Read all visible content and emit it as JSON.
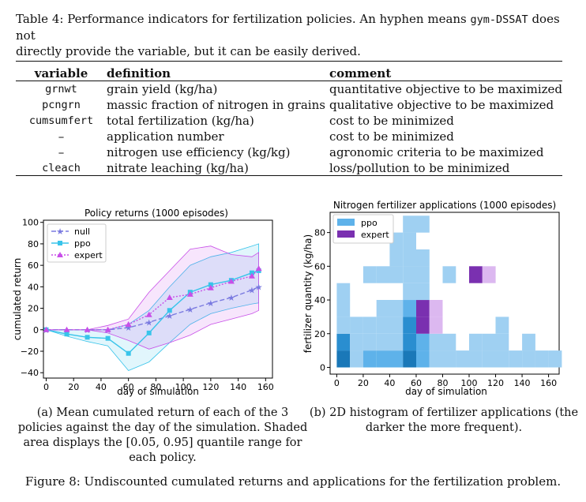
{
  "table_caption": {
    "prefix": "Table 4: Performance indicators for fertilization policies. An hyphen means ",
    "code": "gym-DSSAT",
    "line1_suffix": " does not",
    "line2": "directly provide the variable, but it can be easily derived."
  },
  "table": {
    "headers": [
      "variable",
      "definition",
      "comment"
    ],
    "rows": [
      {
        "variable": "grnwt",
        "definition": "grain yield (kg/ha)",
        "comment": "quantitative objective to be maximized"
      },
      {
        "variable": "pcngrn",
        "definition": "massic fraction of nitrogen in grains",
        "comment": "qualitative objective to be maximized"
      },
      {
        "variable": "cumsumfert",
        "definition": "total fertilization (kg/ha)",
        "comment": "cost to be minimized"
      },
      {
        "variable": "–",
        "definition": "application number",
        "comment": "cost to be minimized"
      },
      {
        "variable": "–",
        "definition": "nitrogen use efficiency (kg/kg)",
        "comment": "agronomic criteria to be maximized"
      },
      {
        "variable": "cleach",
        "definition": "nitrate leaching (kg/ha)",
        "comment": "loss/pollution to be minimized"
      }
    ]
  },
  "colors": {
    "null": "#7a7ae0",
    "ppo": "#38c4ea",
    "expert": "#c84fe8",
    "hist_ppo_light": "#9fd0f2",
    "hist_ppo_mid": "#5eb2ea",
    "hist_ppo_dark": "#2a8ed0",
    "hist_ppo_darker": "#1a78b8",
    "hist_expert_dark": "#7a30b0",
    "hist_expert_light": "#dcb8f0"
  },
  "chart_data": [
    {
      "type": "line",
      "title": "Policy returns (1000 episodes)",
      "xlabel": "day of simulation",
      "ylabel": "cumulated return",
      "xlim": [
        -2,
        165
      ],
      "ylim": [
        -45,
        102
      ],
      "xticks": [
        0,
        20,
        40,
        60,
        80,
        100,
        120,
        140,
        160
      ],
      "yticks": [
        -40,
        -20,
        0,
        20,
        40,
        60,
        80,
        100
      ],
      "legend_position": "top-left",
      "series": [
        {
          "name": "null",
          "color_key": "null",
          "marker": "star",
          "dash": "6,3",
          "x": [
            0,
            15,
            30,
            45,
            60,
            75,
            90,
            105,
            120,
            135,
            150,
            155
          ],
          "y": [
            0,
            0,
            0,
            0,
            2,
            7,
            13,
            19,
            25,
            30,
            37,
            40
          ],
          "band_lo": [
            0,
            0,
            0,
            0,
            0,
            0,
            0,
            0,
            0,
            0,
            0,
            0
          ],
          "band_hi": [
            0,
            0,
            0,
            0,
            0,
            0,
            0,
            0,
            0,
            0,
            0,
            0
          ]
        },
        {
          "name": "ppo",
          "color_key": "ppo",
          "marker": "circle",
          "dash": "",
          "x": [
            0,
            15,
            30,
            45,
            60,
            75,
            90,
            105,
            120,
            135,
            150,
            155
          ],
          "y": [
            0,
            -4,
            -7,
            -8,
            -22,
            -3,
            18,
            35,
            42,
            46,
            53,
            55
          ],
          "band_lo": [
            0,
            -6,
            -11,
            -15,
            -38,
            -30,
            -12,
            5,
            15,
            20,
            24,
            25
          ],
          "band_hi": [
            0,
            0,
            0,
            0,
            5,
            18,
            40,
            60,
            68,
            72,
            78,
            80
          ]
        },
        {
          "name": "expert",
          "color_key": "expert",
          "marker": "triangle",
          "dash": "2,2",
          "x": [
            0,
            15,
            30,
            45,
            60,
            75,
            90,
            105,
            120,
            135,
            150,
            155
          ],
          "y": [
            0,
            0,
            0,
            0,
            5,
            14,
            30,
            33,
            39,
            45,
            50,
            57
          ],
          "band_lo": [
            0,
            0,
            0,
            -3,
            -10,
            -18,
            -12,
            -5,
            5,
            10,
            15,
            18
          ],
          "band_hi": [
            0,
            0,
            0,
            4,
            10,
            35,
            55,
            75,
            78,
            70,
            68,
            72
          ]
        }
      ]
    },
    {
      "type": "heatmap",
      "title": "Nitrogen fertilizer applications (1000 episodes)",
      "xlabel": "day of simulation",
      "ylabel": "fertilizer quantity (kg/ha)",
      "xlim": [
        -5,
        168
      ],
      "ylim": [
        -4,
        92
      ],
      "xticks": [
        0,
        20,
        40,
        60,
        80,
        100,
        120,
        140,
        160
      ],
      "yticks": [
        0,
        20,
        40,
        60,
        80
      ],
      "legend_position": "top-left",
      "legend": [
        {
          "name": "ppo",
          "color_key": "hist_ppo_mid"
        },
        {
          "name": "expert",
          "color_key": "hist_expert_dark"
        }
      ],
      "bin_width": 10,
      "bin_height": 10,
      "cells": [
        {
          "x": 0,
          "y": 0,
          "level": "darker",
          "policy": "ppo"
        },
        {
          "x": 0,
          "y": 10,
          "level": "dark",
          "policy": "ppo"
        },
        {
          "x": 0,
          "y": 20,
          "level": "light",
          "policy": "ppo"
        },
        {
          "x": 0,
          "y": 30,
          "level": "light",
          "policy": "ppo"
        },
        {
          "x": 0,
          "y": 40,
          "level": "light",
          "policy": "ppo"
        },
        {
          "x": 10,
          "y": 0,
          "level": "light",
          "policy": "ppo"
        },
        {
          "x": 10,
          "y": 10,
          "level": "light",
          "policy": "ppo"
        },
        {
          "x": 10,
          "y": 20,
          "level": "light",
          "policy": "ppo"
        },
        {
          "x": 20,
          "y": 0,
          "level": "mid",
          "policy": "ppo"
        },
        {
          "x": 20,
          "y": 10,
          "level": "light",
          "policy": "ppo"
        },
        {
          "x": 20,
          "y": 20,
          "level": "light",
          "policy": "ppo"
        },
        {
          "x": 20,
          "y": 50,
          "level": "light",
          "policy": "ppo"
        },
        {
          "x": 30,
          "y": 0,
          "level": "mid",
          "policy": "ppo"
        },
        {
          "x": 30,
          "y": 10,
          "level": "light",
          "policy": "ppo"
        },
        {
          "x": 30,
          "y": 20,
          "level": "light",
          "policy": "ppo"
        },
        {
          "x": 30,
          "y": 30,
          "level": "light",
          "policy": "ppo"
        },
        {
          "x": 30,
          "y": 50,
          "level": "light",
          "policy": "ppo"
        },
        {
          "x": 40,
          "y": 0,
          "level": "mid",
          "policy": "ppo"
        },
        {
          "x": 40,
          "y": 10,
          "level": "light",
          "policy": "ppo"
        },
        {
          "x": 40,
          "y": 20,
          "level": "light",
          "policy": "ppo"
        },
        {
          "x": 40,
          "y": 30,
          "level": "light",
          "policy": "ppo"
        },
        {
          "x": 40,
          "y": 50,
          "level": "light",
          "policy": "ppo"
        },
        {
          "x": 40,
          "y": 60,
          "level": "light",
          "policy": "ppo"
        },
        {
          "x": 40,
          "y": 70,
          "level": "light",
          "policy": "ppo"
        },
        {
          "x": 50,
          "y": 0,
          "level": "darker",
          "policy": "ppo"
        },
        {
          "x": 50,
          "y": 10,
          "level": "dark",
          "policy": "ppo"
        },
        {
          "x": 50,
          "y": 20,
          "level": "dark",
          "policy": "ppo"
        },
        {
          "x": 50,
          "y": 30,
          "level": "mid",
          "policy": "ppo"
        },
        {
          "x": 50,
          "y": 40,
          "level": "light",
          "policy": "ppo"
        },
        {
          "x": 50,
          "y": 50,
          "level": "light",
          "policy": "ppo"
        },
        {
          "x": 50,
          "y": 60,
          "level": "light",
          "policy": "ppo"
        },
        {
          "x": 50,
          "y": 70,
          "level": "light",
          "policy": "ppo"
        },
        {
          "x": 50,
          "y": 80,
          "level": "light",
          "policy": "ppo"
        },
        {
          "x": 60,
          "y": 0,
          "level": "mid",
          "policy": "ppo"
        },
        {
          "x": 60,
          "y": 10,
          "level": "mid",
          "policy": "ppo"
        },
        {
          "x": 60,
          "y": 20,
          "level": "dark",
          "policy": "expert"
        },
        {
          "x": 60,
          "y": 30,
          "level": "dark",
          "policy": "expert"
        },
        {
          "x": 60,
          "y": 40,
          "level": "light",
          "policy": "ppo"
        },
        {
          "x": 60,
          "y": 50,
          "level": "light",
          "policy": "ppo"
        },
        {
          "x": 60,
          "y": 60,
          "level": "light",
          "policy": "ppo"
        },
        {
          "x": 60,
          "y": 80,
          "level": "light",
          "policy": "ppo"
        },
        {
          "x": 70,
          "y": 0,
          "level": "light",
          "policy": "ppo"
        },
        {
          "x": 70,
          "y": 10,
          "level": "light",
          "policy": "ppo"
        },
        {
          "x": 70,
          "y": 20,
          "level": "light",
          "policy": "expert"
        },
        {
          "x": 70,
          "y": 30,
          "level": "light",
          "policy": "expert"
        },
        {
          "x": 80,
          "y": 0,
          "level": "light",
          "policy": "ppo"
        },
        {
          "x": 80,
          "y": 10,
          "level": "light",
          "policy": "ppo"
        },
        {
          "x": 80,
          "y": 50,
          "level": "light",
          "policy": "ppo"
        },
        {
          "x": 90,
          "y": 0,
          "level": "light",
          "policy": "ppo"
        },
        {
          "x": 100,
          "y": 0,
          "level": "light",
          "policy": "ppo"
        },
        {
          "x": 100,
          "y": 10,
          "level": "light",
          "policy": "ppo"
        },
        {
          "x": 100,
          "y": 50,
          "level": "dark",
          "policy": "expert"
        },
        {
          "x": 110,
          "y": 0,
          "level": "light",
          "policy": "ppo"
        },
        {
          "x": 110,
          "y": 10,
          "level": "light",
          "policy": "ppo"
        },
        {
          "x": 110,
          "y": 50,
          "level": "light",
          "policy": "expert"
        },
        {
          "x": 120,
          "y": 0,
          "level": "light",
          "policy": "ppo"
        },
        {
          "x": 120,
          "y": 10,
          "level": "light",
          "policy": "ppo"
        },
        {
          "x": 120,
          "y": 20,
          "level": "light",
          "policy": "ppo"
        },
        {
          "x": 130,
          "y": 0,
          "level": "light",
          "policy": "ppo"
        },
        {
          "x": 140,
          "y": 0,
          "level": "light",
          "policy": "ppo"
        },
        {
          "x": 140,
          "y": 10,
          "level": "light",
          "policy": "ppo"
        },
        {
          "x": 150,
          "y": 0,
          "level": "light",
          "policy": "ppo"
        },
        {
          "x": 160,
          "y": 0,
          "level": "light",
          "policy": "ppo"
        }
      ]
    }
  ],
  "subcaption_a": [
    "(a) Mean cumulated return of each of the 3",
    "policies against the day of the simulation. Shaded",
    "area displays the [0.05, 0.95] quantile range for",
    "each policy."
  ],
  "subcaption_b": [
    "(b) 2D histogram of fertilizer applications (the",
    "darker the more frequent)."
  ],
  "figure_caption": "Figure 8: Undiscounted cumulated returns and applications for the fertilization problem."
}
